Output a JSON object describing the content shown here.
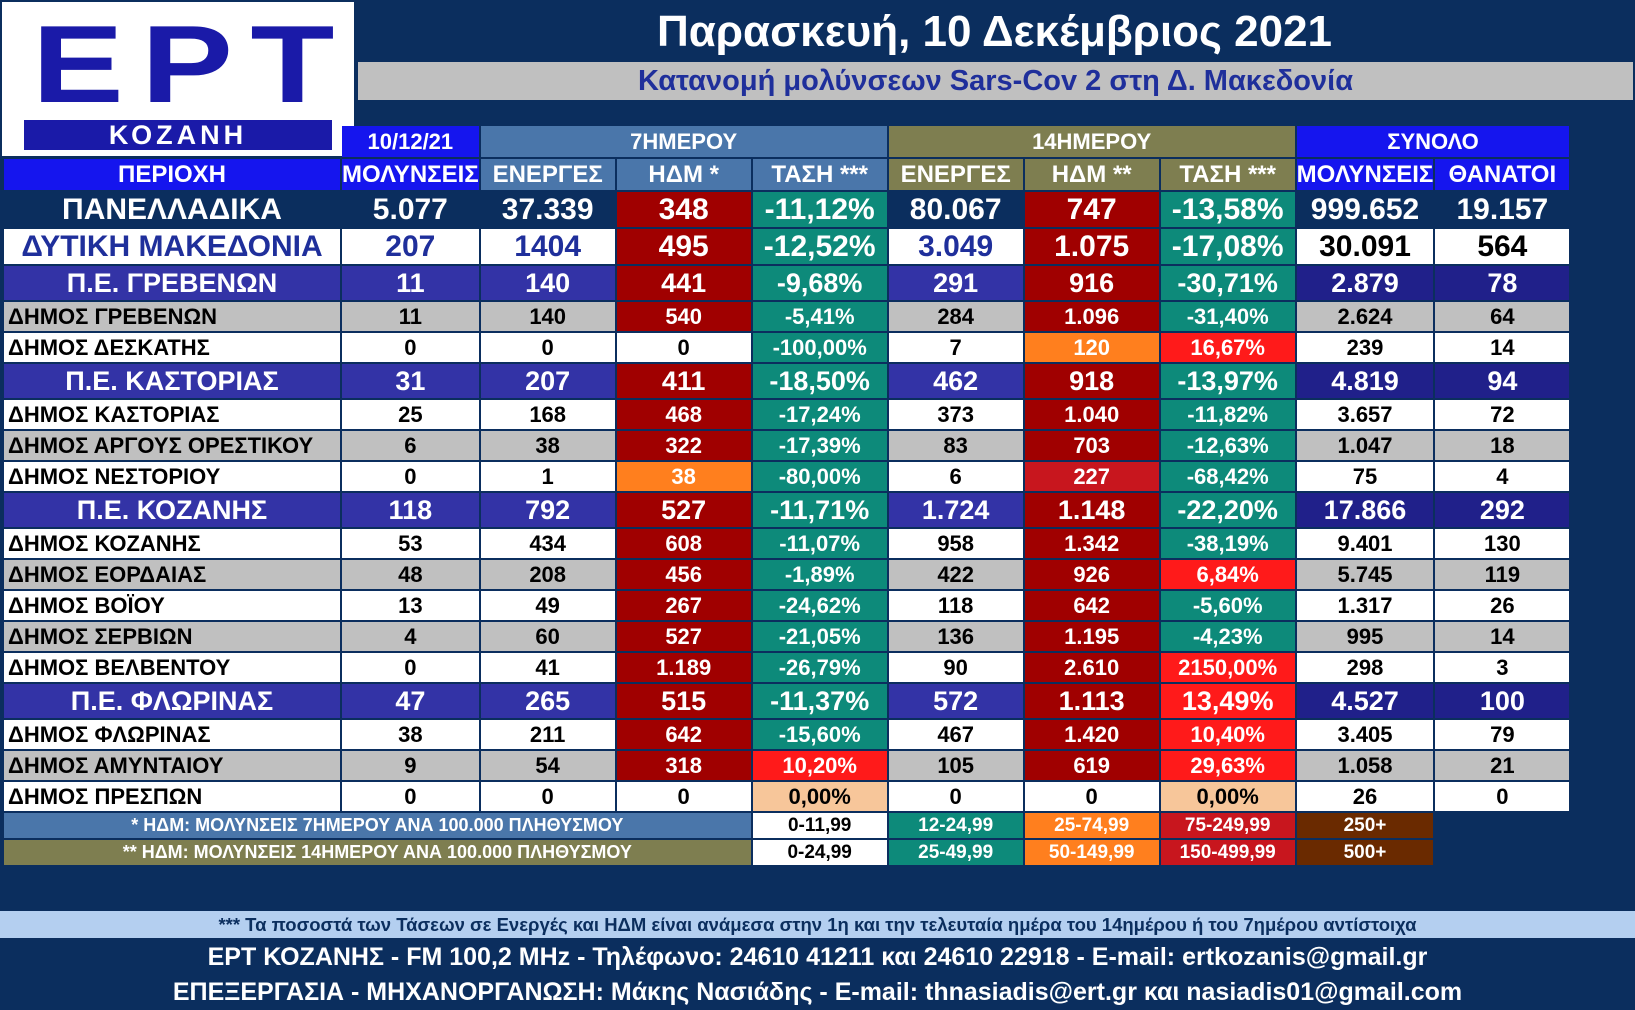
{
  "logo": {
    "brand": "ΕΡΤ",
    "city": "ΚΟΖΑΝΗ"
  },
  "title": "Παρασκευή, 10 Δεκέμβριος 2021",
  "subtitle": "Κατανομή μολύνσεων Sars-Cov 2 στη Δ. Μακεδονία",
  "group_headers": {
    "date": "10/12/21",
    "week": "7ΗΜΕΡΟΥ",
    "fortnight": "14ΗΜΕΡΟΥ",
    "total": "ΣΥΝΟΛΟ"
  },
  "columns": [
    "ΠΕΡΙΟΧΗ",
    "ΜΟΛΥΝΣΕΙΣ",
    "ΕΝΕΡΓΕΣ",
    "ΗΔΜ *",
    "ΤΑΣΗ ***",
    "ΕΝΕΡΓΕΣ",
    "ΗΔΜ **",
    "ΤΑΣΗ ***",
    "ΜΟΛΥΝΣΕΙΣ",
    "ΘΑΝΑΤΟΙ"
  ],
  "rows": [
    [
      "ΠΑΝΕΛΛΑΔΙΚΑ",
      "5.077",
      "37.339",
      "348",
      "-11,12%",
      "80.067",
      "747",
      "-13,58%",
      "999.652",
      "19.157"
    ],
    [
      "ΔΥΤΙΚΗ ΜΑΚΕΔΟΝΙΑ",
      "207",
      "1404",
      "495",
      "-12,52%",
      "3.049",
      "1.075",
      "-17,08%",
      "30.091",
      "564"
    ],
    [
      "Π.Ε. ΓΡΕΒΕΝΩΝ",
      "11",
      "140",
      "441",
      "-9,68%",
      "291",
      "916",
      "-30,71%",
      "2.879",
      "78"
    ],
    [
      "ΔΗΜΟΣ ΓΡΕΒΕΝΩΝ",
      "11",
      "140",
      "540",
      "-5,41%",
      "284",
      "1.096",
      "-31,40%",
      "2.624",
      "64"
    ],
    [
      "ΔΗΜΟΣ ΔΕΣΚΑΤΗΣ",
      "0",
      "0",
      "0",
      "-100,00%",
      "7",
      "120",
      "16,67%",
      "239",
      "14"
    ],
    [
      "Π.Ε. ΚΑΣΤΟΡΙΑΣ",
      "31",
      "207",
      "411",
      "-18,50%",
      "462",
      "918",
      "-13,97%",
      "4.819",
      "94"
    ],
    [
      "ΔΗΜΟΣ ΚΑΣΤΟΡΙΑΣ",
      "25",
      "168",
      "468",
      "-17,24%",
      "373",
      "1.040",
      "-11,82%",
      "3.657",
      "72"
    ],
    [
      "ΔΗΜΟΣ ΑΡΓΟΥΣ ΟΡΕΣΤΙΚΟΥ",
      "6",
      "38",
      "322",
      "-17,39%",
      "83",
      "703",
      "-12,63%",
      "1.047",
      "18"
    ],
    [
      "ΔΗΜΟΣ ΝΕΣΤΟΡΙΟΥ",
      "0",
      "1",
      "38",
      "-80,00%",
      "6",
      "227",
      "-68,42%",
      "75",
      "4"
    ],
    [
      "Π.Ε. ΚΟΖΑΝΗΣ",
      "118",
      "792",
      "527",
      "-11,71%",
      "1.724",
      "1.148",
      "-22,20%",
      "17.866",
      "292"
    ],
    [
      "ΔΗΜΟΣ ΚΟΖΑΝΗΣ",
      "53",
      "434",
      "608",
      "-11,07%",
      "958",
      "1.342",
      "-38,19%",
      "9.401",
      "130"
    ],
    [
      "ΔΗΜΟΣ ΕΟΡΔΑΙΑΣ",
      "48",
      "208",
      "456",
      "-1,89%",
      "422",
      "926",
      "6,84%",
      "5.745",
      "119"
    ],
    [
      "ΔΗΜΟΣ ΒΟΪΟΥ",
      "13",
      "49",
      "267",
      "-24,62%",
      "118",
      "642",
      "-5,60%",
      "1.317",
      "26"
    ],
    [
      "ΔΗΜΟΣ ΣΕΡΒΙΩΝ",
      "4",
      "60",
      "527",
      "-21,05%",
      "136",
      "1.195",
      "-4,23%",
      "995",
      "14"
    ],
    [
      "ΔΗΜΟΣ ΒΕΛΒΕΝΤΟΥ",
      "0",
      "41",
      "1.189",
      "-26,79%",
      "90",
      "2.610",
      "2150,00%",
      "298",
      "3"
    ],
    [
      "Π.Ε. ΦΛΩΡΙΝΑΣ",
      "47",
      "265",
      "515",
      "-11,37%",
      "572",
      "1.113",
      "13,49%",
      "4.527",
      "100"
    ],
    [
      "ΔΗΜΟΣ ΦΛΩΡΙΝΑΣ",
      "38",
      "211",
      "642",
      "-15,60%",
      "467",
      "1.420",
      "10,40%",
      "3.405",
      "79"
    ],
    [
      "ΔΗΜΟΣ ΑΜΥΝΤΑΙΟΥ",
      "9",
      "54",
      "318",
      "10,20%",
      "105",
      "619",
      "29,63%",
      "1.058",
      "21"
    ],
    [
      "ΔΗΜΟΣ ΠΡΕΣΠΩΝ",
      "0",
      "0",
      "0",
      "0,00%",
      "0",
      "0",
      "0,00%",
      "26",
      "0"
    ]
  ],
  "legend": [
    {
      "label": "* ΗΔΜ: ΜΟΛΥΝΣΕΙΣ 7ΗΜΕΡΟΥ ΑΝΑ 100.000 ΠΛΗΘΥΣΜΟΥ",
      "ranges": [
        "0-11,99",
        "12-24,99",
        "25-74,99",
        "75-249,99",
        "250+"
      ]
    },
    {
      "label": "** ΗΔΜ: ΜΟΛΥΝΣΕΙΣ 14ΗΜΕΡΟΥ ΑΝΑ 100.000 ΠΛΗΘΥΣΜΟΥ",
      "ranges": [
        "0-24,99",
        "25-49,99",
        "50-149,99",
        "150-499,99",
        "500+"
      ]
    }
  ],
  "note": "*** Τα ποσοστά των Τάσεων σε Ενεργές και ΗΔΜ είναι ανάμεσα στην 1η και την τελευταία ημέρα του 14ημέρου ή του 7ημέρου αντίστοιχα",
  "footer_1": "ΕΡΤ ΚΟΖΑΝΗΣ - FM 100,2 MHz - Τηλέφωνο:  24610 41211 και 24610 22918 - E-mail: ertkozanis@gmail.gr",
  "footer_2": "ΕΠΕΞΕΡΓΑΣΙΑ  -  ΜΗΧΑΝΟΡΓΑΝΩΣΗ: Μάκης Νασιάδης  -   E-mail: thnasiadis@ert.gr και nasiadis01@gmail.com",
  "colors": {
    "background": "#0b2e5e",
    "logo_blue": "#1a1aa8",
    "header_blue": "#1515ee",
    "week_header": "#4a76aa",
    "fortnight_header": "#7e7e50",
    "hdm_very_high": "#a00000",
    "hdm_high": "#c8161e",
    "hdm_medium": "#ff7f1e",
    "hdm_low": "#ffffff",
    "trend_down": "#0d8a7a",
    "trend_up": "#ff1a1a",
    "trend_zero": "#f7c69a",
    "region_row": "#3333a6",
    "total_dark": "#20208a",
    "municipality_grey": "#c0c0c0"
  }
}
